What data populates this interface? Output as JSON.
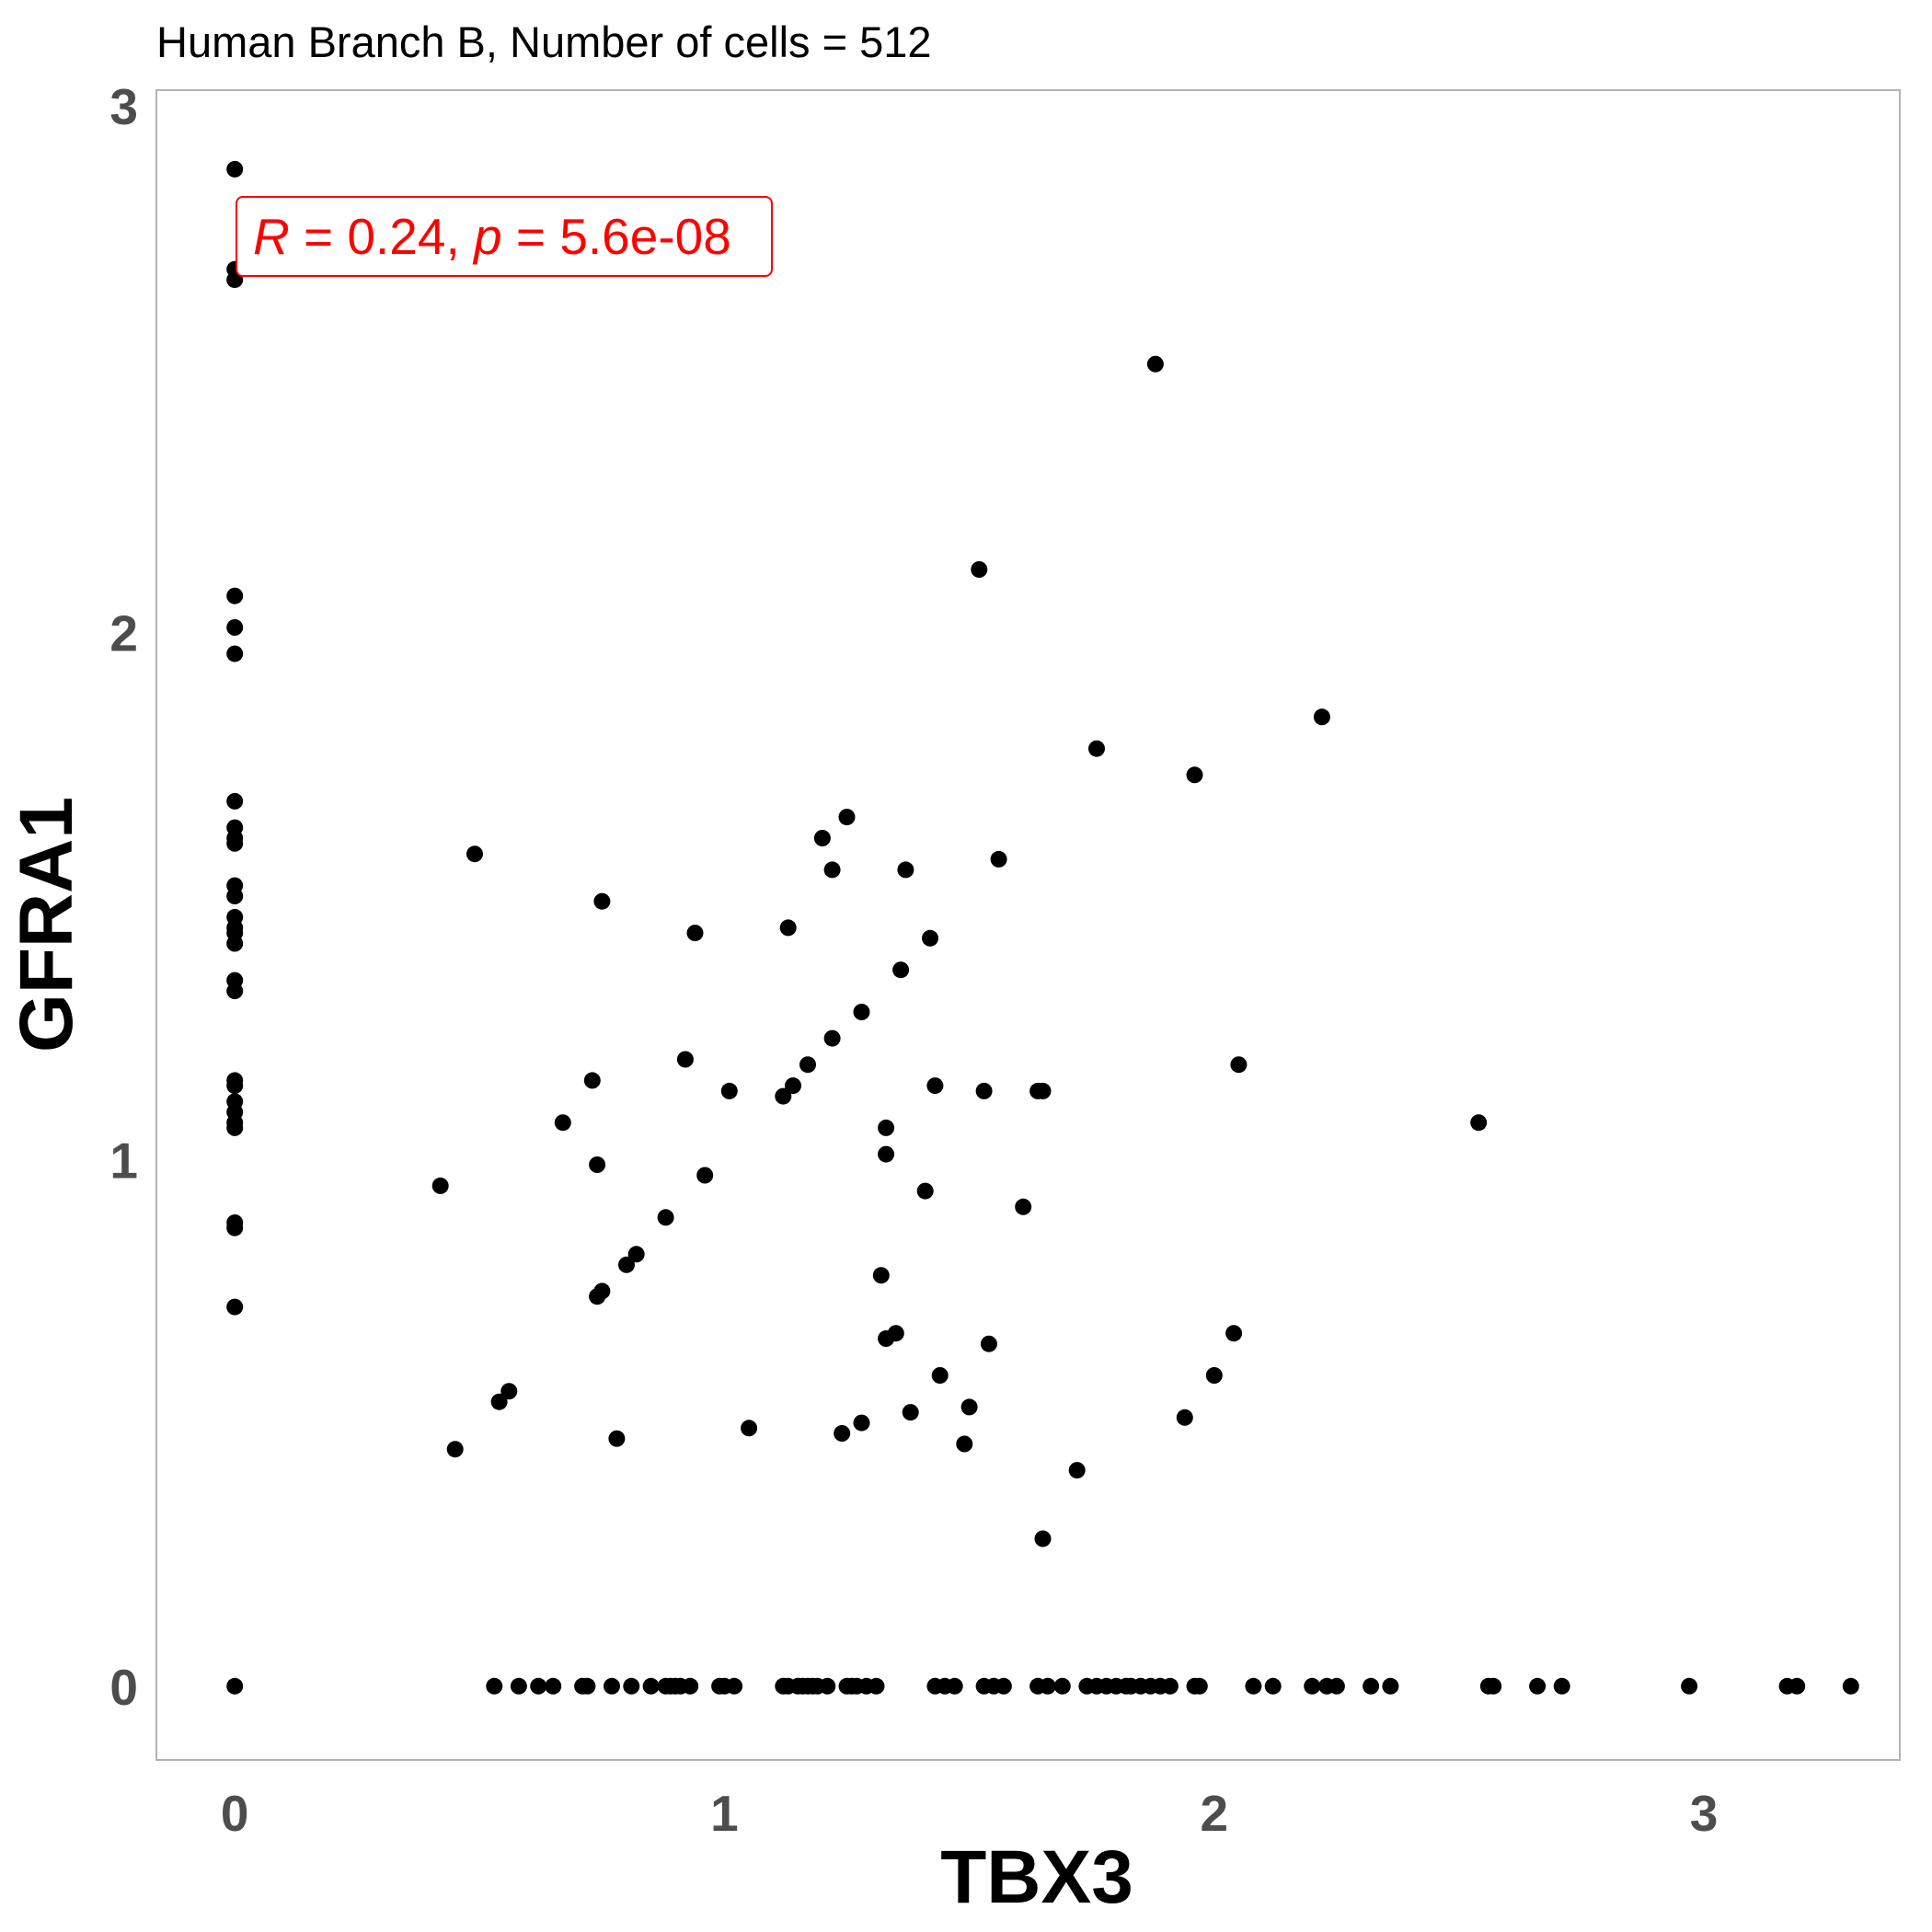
{
  "chart_data": {
    "type": "scatter",
    "title": "Human Branch B, Number of cells = 512",
    "xlabel": "TBX3",
    "ylabel": "GFRA1",
    "xlim": [
      -0.16,
      3.4
    ],
    "ylim": [
      -0.14,
      3.03
    ],
    "x_ticks": [
      0,
      1,
      2,
      3
    ],
    "y_ticks": [
      0,
      1,
      2,
      3
    ],
    "x_tick_labels": [
      "0",
      "1",
      "2",
      "3"
    ],
    "y_tick_labels": [
      "0",
      "1",
      "2",
      "3"
    ],
    "grid": false,
    "point_color": "#000000",
    "annotation": {
      "r_symbol": "R",
      "r_value": "0.24",
      "p_symbol": "p",
      "p_value": "5.6e-08",
      "separator": ", ",
      "equals": " = ",
      "color": "#ff0000",
      "position": "top-left"
    },
    "points": [
      [
        0,
        2.88
      ],
      [
        0,
        2.69
      ],
      [
        0,
        2.67
      ],
      [
        0,
        2.07
      ],
      [
        0,
        2.01
      ],
      [
        0,
        1.96
      ],
      [
        0,
        1.68
      ],
      [
        0,
        1.63
      ],
      [
        0,
        1.61
      ],
      [
        0,
        1.6
      ],
      [
        0,
        1.52
      ],
      [
        0,
        1.5
      ],
      [
        0,
        1.46
      ],
      [
        0,
        1.44
      ],
      [
        0,
        1.43
      ],
      [
        0,
        1.41
      ],
      [
        0,
        1.34
      ],
      [
        0,
        1.32
      ],
      [
        0,
        1.15
      ],
      [
        0,
        1.14
      ],
      [
        0,
        1.11
      ],
      [
        0,
        1.09
      ],
      [
        0,
        1.07
      ],
      [
        0,
        1.06
      ],
      [
        0,
        0.88
      ],
      [
        0,
        0.87
      ],
      [
        0,
        0.72
      ],
      [
        0,
        0
      ],
      [
        0.42,
        0.95
      ],
      [
        0.45,
        0.45
      ],
      [
        0.49,
        1.58
      ],
      [
        0.54,
        0.54
      ],
      [
        0.56,
        0.56
      ],
      [
        0.67,
        1.07
      ],
      [
        0.73,
        1.15
      ],
      [
        0.74,
        0.99
      ],
      [
        0.74,
        0.74
      ],
      [
        0.75,
        0.75
      ],
      [
        0.75,
        1.49
      ],
      [
        0.78,
        0.47
      ],
      [
        0.8,
        0.8
      ],
      [
        0.82,
        0.82
      ],
      [
        0.88,
        0.89
      ],
      [
        0.92,
        1.19
      ],
      [
        0.94,
        1.43
      ],
      [
        0.96,
        0.97
      ],
      [
        1.01,
        1.13
      ],
      [
        1.05,
        0.49
      ],
      [
        1.12,
        1.12
      ],
      [
        1.13,
        1.44
      ],
      [
        1.14,
        1.14
      ],
      [
        1.17,
        1.18
      ],
      [
        1.2,
        1.61
      ],
      [
        1.22,
        1.55
      ],
      [
        1.22,
        1.23
      ],
      [
        1.24,
        0.48
      ],
      [
        1.25,
        1.65
      ],
      [
        1.28,
        0.5
      ],
      [
        1.28,
        1.28
      ],
      [
        1.32,
        0.78
      ],
      [
        1.33,
        1.01
      ],
      [
        1.33,
        1.06
      ],
      [
        1.33,
        0.66
      ],
      [
        1.35,
        0.67
      ],
      [
        1.36,
        1.36
      ],
      [
        1.37,
        1.55
      ],
      [
        1.38,
        0.52
      ],
      [
        1.41,
        0.94
      ],
      [
        1.42,
        1.42
      ],
      [
        1.43,
        1.14
      ],
      [
        1.44,
        0.59
      ],
      [
        1.49,
        0.46
      ],
      [
        1.5,
        0.53
      ],
      [
        1.52,
        2.12
      ],
      [
        1.53,
        1.13
      ],
      [
        1.54,
        0.65
      ],
      [
        1.56,
        1.57
      ],
      [
        1.61,
        0.91
      ],
      [
        1.64,
        1.13
      ],
      [
        1.65,
        0.28
      ],
      [
        1.65,
        1.13
      ],
      [
        1.72,
        0.41
      ],
      [
        1.76,
        1.78
      ],
      [
        1.88,
        2.51
      ],
      [
        1.94,
        0.51
      ],
      [
        1.96,
        1.73
      ],
      [
        2.0,
        0.59
      ],
      [
        2.04,
        0.67
      ],
      [
        2.05,
        1.18
      ],
      [
        2.22,
        1.84
      ],
      [
        2.54,
        1.07
      ],
      [
        0.53,
        0
      ],
      [
        0.58,
        0
      ],
      [
        0.62,
        0
      ],
      [
        0.65,
        0
      ],
      [
        0.71,
        0
      ],
      [
        0.72,
        0
      ],
      [
        0.77,
        0
      ],
      [
        0.81,
        0
      ],
      [
        0.85,
        0
      ],
      [
        0.88,
        0
      ],
      [
        0.89,
        0
      ],
      [
        0.9,
        0
      ],
      [
        0.91,
        0
      ],
      [
        0.93,
        0
      ],
      [
        0.99,
        0
      ],
      [
        1.0,
        0
      ],
      [
        1.02,
        0
      ],
      [
        1.12,
        0
      ],
      [
        1.13,
        0
      ],
      [
        1.15,
        0
      ],
      [
        1.16,
        0
      ],
      [
        1.17,
        0
      ],
      [
        1.18,
        0
      ],
      [
        1.19,
        0
      ],
      [
        1.21,
        0
      ],
      [
        1.25,
        0
      ],
      [
        1.26,
        0
      ],
      [
        1.27,
        0
      ],
      [
        1.29,
        0
      ],
      [
        1.31,
        0
      ],
      [
        1.43,
        0
      ],
      [
        1.45,
        0
      ],
      [
        1.47,
        0
      ],
      [
        1.53,
        0
      ],
      [
        1.55,
        0
      ],
      [
        1.57,
        0
      ],
      [
        1.64,
        0
      ],
      [
        1.66,
        0
      ],
      [
        1.69,
        0
      ],
      [
        1.74,
        0
      ],
      [
        1.76,
        0
      ],
      [
        1.78,
        0
      ],
      [
        1.8,
        0
      ],
      [
        1.82,
        0
      ],
      [
        1.83,
        0
      ],
      [
        1.85,
        0
      ],
      [
        1.87,
        0
      ],
      [
        1.89,
        0
      ],
      [
        1.91,
        0
      ],
      [
        1.96,
        0
      ],
      [
        1.97,
        0
      ],
      [
        2.08,
        0
      ],
      [
        2.12,
        0
      ],
      [
        2.2,
        0
      ],
      [
        2.23,
        0
      ],
      [
        2.25,
        0
      ],
      [
        2.32,
        0
      ],
      [
        2.36,
        0
      ],
      [
        2.56,
        0
      ],
      [
        2.57,
        0
      ],
      [
        2.66,
        0
      ],
      [
        2.71,
        0
      ],
      [
        2.97,
        0
      ],
      [
        3.17,
        0
      ],
      [
        3.19,
        0
      ],
      [
        3.3,
        0
      ]
    ]
  }
}
